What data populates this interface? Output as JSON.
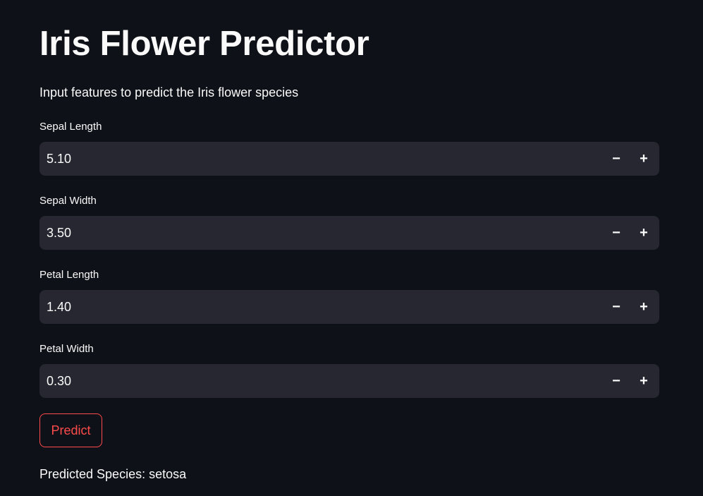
{
  "title": "Iris Flower Predictor",
  "subtitle": "Input features to predict the Iris flower species",
  "fields": [
    {
      "label": "Sepal Length",
      "value": "5.10"
    },
    {
      "label": "Sepal Width",
      "value": "3.50"
    },
    {
      "label": "Petal Length",
      "value": "1.40"
    },
    {
      "label": "Petal Width",
      "value": "0.30"
    }
  ],
  "stepper": {
    "minus": "−",
    "plus": "+"
  },
  "predict_button": "Predict",
  "result": "Predicted Species: setosa",
  "colors": {
    "background": "#0e1117",
    "input_background": "#262730",
    "text": "#fafafa",
    "accent": "#ff4b4b"
  }
}
